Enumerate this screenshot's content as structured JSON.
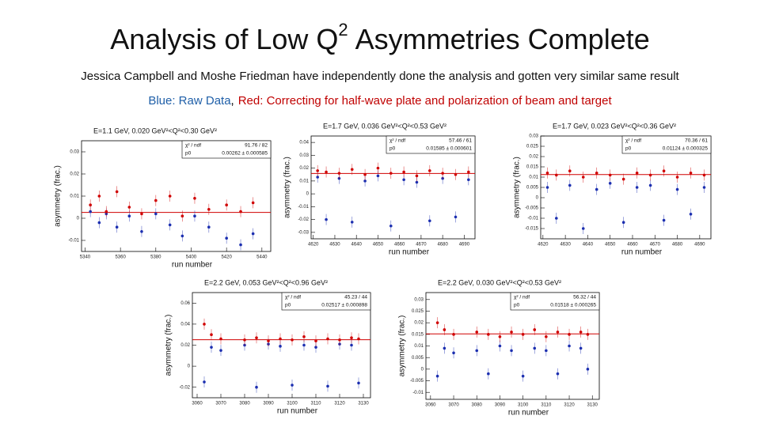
{
  "title": {
    "before": "Analysis of Low Q",
    "sup": "2",
    "after": "Asymmetries Complete"
  },
  "subtitle": "Jessica Campbell and Moshe Friedman have independently done the analysis and gotten very similar same result",
  "note": [
    {
      "text": "Blue: Raw Data",
      "color": "#1f5fa8"
    },
    {
      "text": ",",
      "color": "#000000"
    },
    {
      "text": "Red: Correcting for half-wave plate and polarization of beam and target",
      "color": "#c00000"
    }
  ],
  "chart_data": [
    {
      "type": "scatter",
      "title": "E=1.1 GeV, 0.020 GeV²<Q²<0.30 GeV²",
      "x_label": "run number",
      "y_label": "asymmetry (frac.)",
      "stats": [
        [
          "χ² / ndf",
          "91.76 / 82"
        ],
        [
          "p0",
          "0.00262 ± 0.000585"
        ]
      ],
      "fit_value": 0.00262,
      "fit_color": "#d00000",
      "xlim": [
        5338,
        5445
      ],
      "xticks": [
        5340,
        5360,
        5380,
        5400,
        5420,
        5440
      ],
      "ylim": [
        -0.015,
        0.035
      ],
      "yticks": [
        -0.01,
        0,
        0.01,
        0.02,
        0.03
      ],
      "x": [
        5343,
        5348,
        5352,
        5358,
        5365,
        5372,
        5380,
        5388,
        5395,
        5402,
        5410,
        5420,
        5428,
        5435
      ],
      "series": [
        {
          "name": "Raw Data",
          "color": "#1c2fb0",
          "values": [
            0.003,
            -0.002,
            0.002,
            -0.004,
            0.001,
            -0.006,
            0.002,
            -0.003,
            -0.008,
            0.001,
            -0.004,
            -0.009,
            -0.012,
            -0.007
          ]
        },
        {
          "name": "Corrected",
          "color": "#d00000",
          "values": [
            0.006,
            0.01,
            0.003,
            0.012,
            0.005,
            0.002,
            0.008,
            0.01,
            0.001,
            0.009,
            0.004,
            0.006,
            0.003,
            0.007
          ]
        }
      ]
    },
    {
      "type": "scatter",
      "title": "E=1.7 GeV, 0.036 GeV²<Q²<0.53 GeV²",
      "x_label": "run number",
      "y_label": "asymmetry (frac.)",
      "stats": [
        [
          "χ² / ndf",
          "57.46 / 61"
        ],
        [
          "p0",
          "0.01585 ± 0.000601"
        ]
      ],
      "fit_value": 0.01585,
      "fit_color": "#d00000",
      "xlim": [
        4619,
        4695
      ],
      "xticks": [
        4620,
        4630,
        4640,
        4650,
        4660,
        4670,
        4680,
        4690
      ],
      "ylim": [
        -0.035,
        0.045
      ],
      "yticks": [
        -0.03,
        -0.02,
        -0.01,
        0,
        0.01,
        0.02,
        0.03,
        0.04
      ],
      "x": [
        4622,
        4626,
        4632,
        4638,
        4644,
        4650,
        4656,
        4662,
        4668,
        4674,
        4680,
        4686,
        4692
      ],
      "series": [
        {
          "name": "Raw Data",
          "color": "#1c2fb0",
          "values": [
            0.013,
            -0.02,
            0.012,
            -0.022,
            0.01,
            0.014,
            -0.025,
            0.011,
            0.009,
            -0.021,
            0.012,
            -0.018,
            0.011
          ]
        },
        {
          "name": "Corrected",
          "color": "#d00000",
          "values": [
            0.018,
            0.017,
            0.016,
            0.019,
            0.015,
            0.02,
            0.016,
            0.017,
            0.014,
            0.018,
            0.016,
            0.015,
            0.017
          ]
        }
      ]
    },
    {
      "type": "scatter",
      "title": "E=1.7 GeV, 0.023 GeV²<Q²<0.36 GeV²",
      "x_label": "run number",
      "y_label": "asymmetry (frac.)",
      "stats": [
        [
          "χ² / ndf",
          "70.36 / 61"
        ],
        [
          "p0",
          "0.01124 ± 0.000325"
        ]
      ],
      "fit_value": 0.01124,
      "fit_color": "#d00000",
      "xlim": [
        4619,
        4695
      ],
      "xticks": [
        4620,
        4630,
        4640,
        4650,
        4660,
        4670,
        4680,
        4690
      ],
      "ylim": [
        -0.02,
        0.03
      ],
      "yticks": [
        -0.015,
        -0.01,
        -0.005,
        0,
        0.005,
        0.01,
        0.015,
        0.02,
        0.025,
        0.03
      ],
      "x": [
        4622,
        4626,
        4632,
        4638,
        4644,
        4650,
        4656,
        4662,
        4668,
        4674,
        4680,
        4686,
        4692
      ],
      "series": [
        {
          "name": "Raw Data",
          "color": "#1c2fb0",
          "values": [
            0.005,
            -0.01,
            0.006,
            -0.015,
            0.004,
            0.007,
            -0.012,
            0.005,
            0.006,
            -0.011,
            0.004,
            -0.008,
            0.005
          ]
        },
        {
          "name": "Corrected",
          "color": "#d00000",
          "values": [
            0.012,
            0.011,
            0.013,
            0.01,
            0.012,
            0.011,
            0.009,
            0.012,
            0.011,
            0.013,
            0.01,
            0.012,
            0.011
          ]
        }
      ]
    },
    {
      "type": "scatter",
      "title": "E=2.2 GeV, 0.053 GeV²<Q²<0.96 GeV²",
      "x_label": "run number",
      "y_label": "asymmetry (frac.)",
      "stats": [
        [
          "χ² / ndf",
          "45.23 / 44"
        ],
        [
          "p0",
          "0.02517 ± 0.000898"
        ]
      ],
      "fit_value": 0.02517,
      "fit_color": "#d00000",
      "xlim": [
        3058,
        3133
      ],
      "xticks": [
        3060,
        3070,
        3080,
        3090,
        3100,
        3110,
        3120,
        3130
      ],
      "ylim": [
        -0.03,
        0.07
      ],
      "yticks": [
        -0.02,
        0,
        0.02,
        0.04,
        0.06
      ],
      "x": [
        3063,
        3066,
        3070,
        3080,
        3085,
        3090,
        3095,
        3100,
        3105,
        3110,
        3115,
        3120,
        3125,
        3128
      ],
      "series": [
        {
          "name": "Raw Data",
          "color": "#1c2fb0",
          "values": [
            -0.015,
            0.018,
            0.015,
            0.02,
            -0.02,
            0.021,
            0.019,
            -0.018,
            0.02,
            0.018,
            -0.019,
            0.021,
            0.02,
            -0.016
          ]
        },
        {
          "name": "Corrected",
          "color": "#d00000",
          "values": [
            0.04,
            0.03,
            0.026,
            0.025,
            0.027,
            0.024,
            0.026,
            0.025,
            0.028,
            0.024,
            0.026,
            0.025,
            0.027,
            0.026
          ]
        }
      ]
    },
    {
      "type": "scatter",
      "title": "E=2.2 GeV, 0.030 GeV²<Q²<0.53 GeV²",
      "x_label": "run number",
      "y_label": "asymmetry (frac.)",
      "stats": [
        [
          "χ² / ndf",
          "56.32 / 44"
        ],
        [
          "p0",
          "0.01518 ± 0.000265"
        ]
      ],
      "fit_value": 0.01518,
      "fit_color": "#d00000",
      "xlim": [
        3058,
        3133
      ],
      "xticks": [
        3060,
        3070,
        3080,
        3090,
        3100,
        3110,
        3120,
        3130
      ],
      "ylim": [
        -0.013,
        0.033
      ],
      "yticks": [
        -0.01,
        -0.005,
        0,
        0.005,
        0.01,
        0.015,
        0.02,
        0.025,
        0.03
      ],
      "x": [
        3063,
        3066,
        3070,
        3080,
        3085,
        3090,
        3095,
        3100,
        3105,
        3110,
        3115,
        3120,
        3125,
        3128
      ],
      "series": [
        {
          "name": "Raw Data",
          "color": "#1c2fb0",
          "values": [
            -0.003,
            0.009,
            0.007,
            0.008,
            -0.002,
            0.01,
            0.008,
            -0.003,
            0.009,
            0.008,
            -0.002,
            0.01,
            0.009,
            0
          ]
        },
        {
          "name": "Corrected",
          "color": "#d00000",
          "values": [
            0.02,
            0.017,
            0.015,
            0.016,
            0.015,
            0.014,
            0.016,
            0.015,
            0.017,
            0.014,
            0.016,
            0.015,
            0.016,
            0.015
          ]
        }
      ]
    }
  ]
}
